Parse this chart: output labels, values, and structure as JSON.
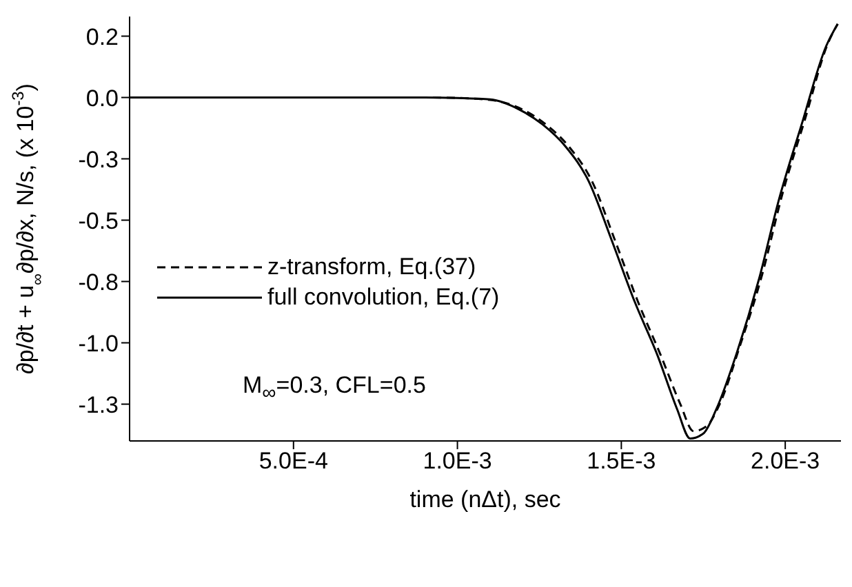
{
  "chart_data": {
    "type": "line",
    "xlabel": "time (nΔt), sec",
    "ylabel": "∂p/∂t + u$_{∞}$∂p/∂x,  N/s, (x 10$^{-3}$)",
    "xlim": [
      0,
      0.00217
    ],
    "xticks": [
      {
        "value": 0.0005,
        "label": "5.0E-4"
      },
      {
        "value": 0.001,
        "label": "1.0E-3"
      },
      {
        "value": 0.0015,
        "label": "1.5E-3"
      },
      {
        "value": 0.002,
        "label": "2.0E-3"
      }
    ],
    "ylim": [
      -1.4,
      0.33
    ],
    "yticks": [
      {
        "value": 0.25,
        "label": "0.2"
      },
      {
        "value": 0,
        "label": "0.0"
      },
      {
        "value": -0.25,
        "label": "-0.3"
      },
      {
        "value": -0.5,
        "label": "-0.5"
      },
      {
        "value": -0.75,
        "label": "-0.8"
      },
      {
        "value": -1,
        "label": "-1.0"
      },
      {
        "value": -1.25,
        "label": "-1.3"
      }
    ],
    "legend": "left",
    "marker": "none",
    "annotations": [
      "M$_{∞}$=0.3, CFL=0.5"
    ],
    "series": [
      {
        "name": "z-transform, Eq.(37)",
        "color": "#000000",
        "line_style": "dashed",
        "x": [
          0,
          0.0009,
          0.001,
          0.0011,
          0.0012,
          0.00127,
          0.00134,
          0.00141,
          0.00148,
          0.00155,
          0.00162,
          0.00168,
          0.00172,
          0.00176,
          0.0018,
          0.00186,
          0.00193,
          0.00199,
          0.00206,
          0.00213,
          0.00216
        ],
        "values": [
          0,
          0,
          -0.002,
          -0.01,
          -0.05,
          -0.11,
          -0.2,
          -0.34,
          -0.58,
          -0.83,
          -1.05,
          -1.25,
          -1.36,
          -1.34,
          -1.25,
          -1.02,
          -0.72,
          -0.4,
          -0.09,
          0.22,
          0.3
        ]
      },
      {
        "name": "full convolution, Eq.(7)",
        "color": "#000000",
        "line_style": "solid",
        "x": [
          0,
          0.0009,
          0.001,
          0.0011,
          0.00119,
          0.00126,
          0.00133,
          0.0014,
          0.00147,
          0.00154,
          0.00161,
          0.00167,
          0.00171,
          0.00175,
          0.00179,
          0.00185,
          0.00192,
          0.00198,
          0.00205,
          0.002125,
          0.00216
        ],
        "values": [
          0,
          0,
          -0.002,
          -0.008,
          -0.05,
          -0.11,
          -0.2,
          -0.34,
          -0.58,
          -0.83,
          -1.05,
          -1.27,
          -1.39,
          -1.37,
          -1.27,
          -1.05,
          -0.74,
          -0.42,
          -0.11,
          0.21,
          0.3
        ]
      }
    ]
  }
}
